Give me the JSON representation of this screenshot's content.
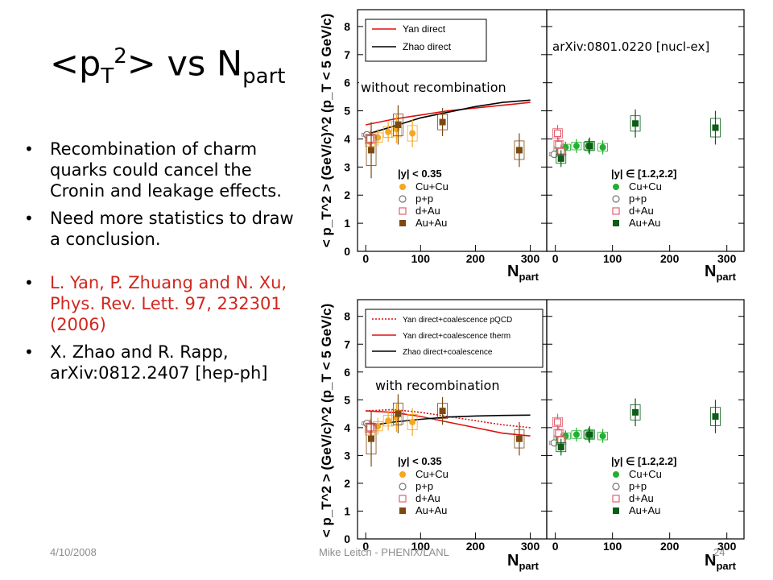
{
  "slide": {
    "title": {
      "base": "<p",
      "sub_t": "T",
      "sup_2": "2",
      "mid": "> vs N",
      "sub_part": "part"
    },
    "bullets": [
      "Recombination of charm quarks could cancel the Cronin and leakage effects.",
      "Need more statistics to draw a conclusion.",
      "L. Yan, P. Zhuang and N. Xu, Phys. Rev. Lett. 97, 232301 (2006)",
      "X. Zhao and R. Rapp, arXiv:0812.2407 [hep-ph]"
    ],
    "footer": {
      "date": "4/10/2008",
      "author": "Mike Leitch - PHENIX/LANL",
      "page": "24"
    }
  },
  "colors": {
    "cucu": "#f5a623",
    "pp": "#777777",
    "dau": "#e06070",
    "auau": "#7b4a12",
    "green_dark": "#0d5c18",
    "green": "#21b030",
    "red": "#e01010",
    "black": "#000000"
  },
  "chart_data": [
    {
      "type": "scatter",
      "title": "",
      "ylabel": "< p_T^2 > (GeV/c)^2 (p_T < 5 GeV/c)",
      "xlabel": "N_part",
      "top_label": "arXiv:0801.0220 [nucl-ex]",
      "panel_label": "without recombination",
      "ylim": [
        0,
        8.6
      ],
      "yticks": [
        0,
        1,
        2,
        3,
        4,
        5,
        6,
        7,
        8
      ],
      "panels": [
        {
          "name": "mid",
          "rapidity_label": "|y| < 0.35",
          "xlim": [
            -15,
            330
          ],
          "xticks": [
            0,
            100,
            200,
            300
          ],
          "legend": [
            "Cu+Cu",
            "p+p",
            "d+Au",
            "Au+Au"
          ],
          "series": [
            {
              "name": "Cu+Cu",
              "marker": "circle-filled",
              "color": "#f5a623",
              "x": [
                8,
                22,
                41,
                56,
                85
              ],
              "y": [
                3.9,
                4.05,
                4.25,
                4.35,
                4.2
              ],
              "err": [
                0.3,
                0.3,
                0.35,
                0.5,
                0.5
              ]
            },
            {
              "name": "p+p",
              "marker": "circle-open",
              "color": "#777777",
              "x": [
                2
              ],
              "y": [
                4.15
              ],
              "err": [
                0.1
              ]
            },
            {
              "name": "d+Au",
              "marker": "square-open",
              "color": "#e06070",
              "x": [
                8
              ],
              "y": [
                4.0
              ],
              "err": [
                0.3
              ]
            },
            {
              "name": "Au+Au",
              "marker": "square-filled",
              "color": "#7b4a12",
              "x": [
                10,
                59,
                140,
                280
              ],
              "y": [
                3.6,
                4.5,
                4.6,
                3.6
              ],
              "err": [
                1.0,
                0.7,
                0.5,
                0.6
              ]
            }
          ],
          "curves": [
            {
              "name": "Yan direct",
              "color": "#e01010",
              "style": "solid",
              "x": [
                0,
                50,
                100,
                150,
                200,
                250,
                300
              ],
              "y": [
                4.5,
                4.7,
                4.85,
                5.0,
                5.1,
                5.2,
                5.3
              ]
            },
            {
              "name": "Zhao direct",
              "color": "#000000",
              "style": "solid",
              "x": [
                0,
                50,
                100,
                150,
                200,
                250,
                300
              ],
              "y": [
                4.15,
                4.45,
                4.75,
                4.95,
                5.15,
                5.3,
                5.38
              ]
            }
          ]
        },
        {
          "name": "forward",
          "rapidity_label": "|y| ∈ [1.2,2.2]",
          "xlim": [
            -15,
            330
          ],
          "xticks": [
            0,
            100,
            200,
            300
          ],
          "legend": [
            "Cu+Cu",
            "p+p",
            "d+Au",
            "Au+Au"
          ],
          "series": [
            {
              "name": "Cu+Cu",
              "marker": "circle-filled",
              "color": "#21b030",
              "x": [
                6,
                18,
                37,
                58,
                83
              ],
              "y": [
                3.6,
                3.7,
                3.75,
                3.75,
                3.7
              ],
              "err": [
                0.2,
                0.2,
                0.25,
                0.25,
                0.25
              ]
            },
            {
              "name": "p+p",
              "marker": "circle-open",
              "color": "#777777",
              "x": [
                -2
              ],
              "y": [
                3.45
              ],
              "err": [
                0.1
              ]
            },
            {
              "name": "d+Au",
              "marker": "square-open",
              "color": "#e06070",
              "x": [
                4,
                6,
                10
              ],
              "y": [
                4.2,
                3.8,
                3.55
              ],
              "err": [
                0.3,
                0.25,
                0.25
              ]
            },
            {
              "name": "Au+Au",
              "marker": "square-filled",
              "color": "#0d5c18",
              "x": [
                10,
                60,
                140,
                280
              ],
              "y": [
                3.3,
                3.75,
                4.55,
                4.4
              ],
              "err": [
                0.3,
                0.3,
                0.5,
                0.6
              ]
            }
          ]
        }
      ]
    },
    {
      "type": "scatter",
      "title": "",
      "ylabel": "< p_T^2 > (GeV/c)^2 (p_T < 5 GeV/c)",
      "xlabel": "N_part",
      "panel_label": "with recombination",
      "ylim": [
        0,
        8.6
      ],
      "yticks": [
        0,
        1,
        2,
        3,
        4,
        5,
        6,
        7,
        8
      ],
      "panels": [
        {
          "name": "mid",
          "rapidity_label": "|y| < 0.35",
          "xlim": [
            -15,
            330
          ],
          "xticks": [
            0,
            100,
            200,
            300
          ],
          "legend": [
            "Cu+Cu",
            "p+p",
            "d+Au",
            "Au+Au"
          ],
          "series": [
            {
              "name": "Cu+Cu",
              "marker": "circle-filled",
              "color": "#f5a623",
              "x": [
                8,
                22,
                41,
                56,
                85
              ],
              "y": [
                3.9,
                4.05,
                4.25,
                4.35,
                4.2
              ],
              "err": [
                0.3,
                0.3,
                0.35,
                0.5,
                0.5
              ]
            },
            {
              "name": "p+p",
              "marker": "circle-open",
              "color": "#777777",
              "x": [
                2
              ],
              "y": [
                4.15
              ],
              "err": [
                0.1
              ]
            },
            {
              "name": "d+Au",
              "marker": "square-open",
              "color": "#e06070",
              "x": [
                8
              ],
              "y": [
                4.0
              ],
              "err": [
                0.3
              ]
            },
            {
              "name": "Au+Au",
              "marker": "square-filled",
              "color": "#7b4a12",
              "x": [
                10,
                59,
                140,
                280
              ],
              "y": [
                3.6,
                4.5,
                4.6,
                3.6
              ],
              "err": [
                1.0,
                0.7,
                0.5,
                0.6
              ]
            }
          ],
          "curves": [
            {
              "name": "Yan direct+coalescence pQCD",
              "color": "#e01010",
              "style": "dotted",
              "x": [
                0,
                50,
                100,
                150,
                200,
                250,
                300
              ],
              "y": [
                4.6,
                4.65,
                4.55,
                4.4,
                4.25,
                4.1,
                4.0
              ]
            },
            {
              "name": "Yan direct+coalescence therm",
              "color": "#e01010",
              "style": "solid",
              "x": [
                0,
                50,
                100,
                150,
                200,
                250,
                300
              ],
              "y": [
                4.6,
                4.55,
                4.4,
                4.2,
                4.0,
                3.8,
                3.7
              ]
            },
            {
              "name": "Zhao direct+coalescence",
              "color": "#000000",
              "style": "solid",
              "x": [
                0,
                50,
                100,
                150,
                200,
                250,
                300
              ],
              "y": [
                4.05,
                4.2,
                4.3,
                4.38,
                4.42,
                4.44,
                4.45
              ]
            }
          ]
        },
        {
          "name": "forward",
          "rapidity_label": "|y| ∈ [1.2,2.2]",
          "xlim": [
            -15,
            330
          ],
          "xticks": [
            0,
            100,
            200,
            300
          ],
          "legend": [
            "Cu+Cu",
            "p+p",
            "d+Au",
            "Au+Au"
          ],
          "series": [
            {
              "name": "Cu+Cu",
              "marker": "circle-filled",
              "color": "#21b030",
              "x": [
                6,
                18,
                37,
                58,
                83
              ],
              "y": [
                3.6,
                3.7,
                3.75,
                3.75,
                3.7
              ],
              "err": [
                0.2,
                0.2,
                0.25,
                0.25,
                0.25
              ]
            },
            {
              "name": "p+p",
              "marker": "circle-open",
              "color": "#777777",
              "x": [
                -2
              ],
              "y": [
                3.45
              ],
              "err": [
                0.1
              ]
            },
            {
              "name": "d+Au",
              "marker": "square-open",
              "color": "#e06070",
              "x": [
                4,
                6,
                10
              ],
              "y": [
                4.2,
                3.8,
                3.55
              ],
              "err": [
                0.3,
                0.25,
                0.25
              ]
            },
            {
              "name": "Au+Au",
              "marker": "square-filled",
              "color": "#0d5c18",
              "x": [
                10,
                60,
                140,
                280
              ],
              "y": [
                3.3,
                3.75,
                4.55,
                4.4
              ],
              "err": [
                0.3,
                0.3,
                0.5,
                0.6
              ]
            }
          ]
        }
      ]
    }
  ]
}
